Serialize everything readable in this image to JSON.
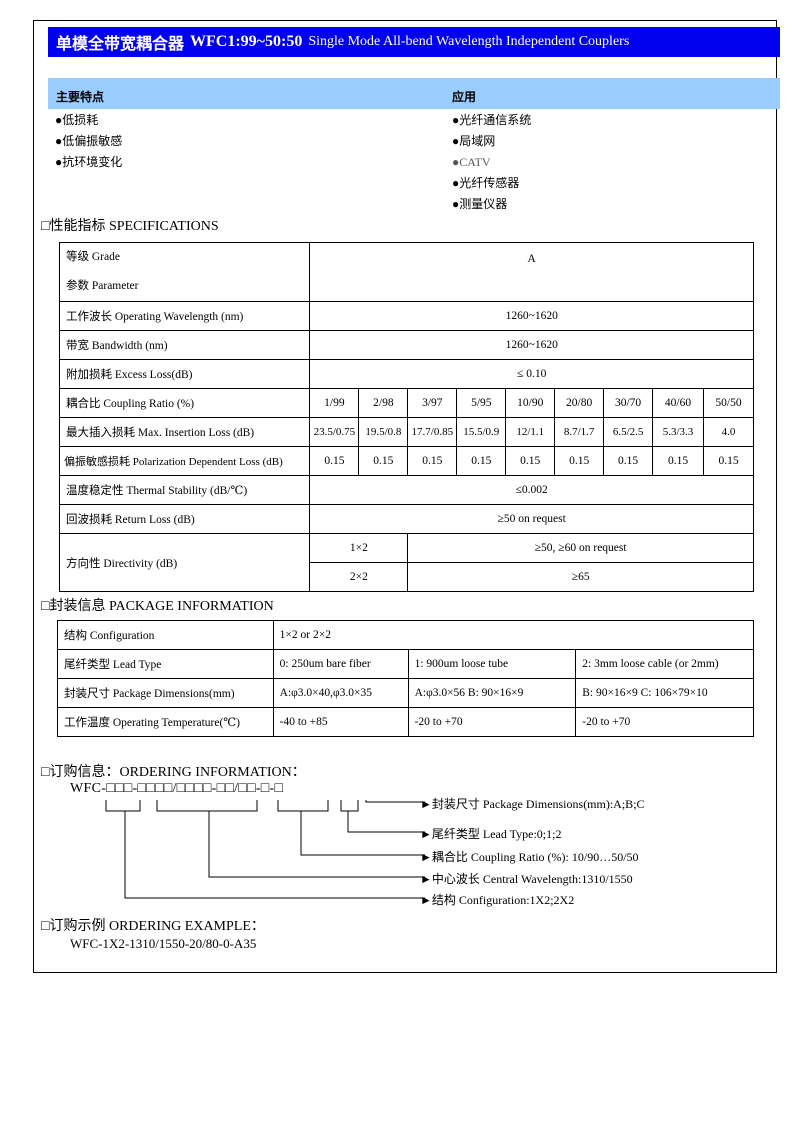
{
  "title": {
    "cn_name": "单模全带宽耦合器",
    "model": "WFC1:99~50:50",
    "en_name": "Single Mode All-bend Wavelength Independent Couplers"
  },
  "features": {
    "heading": "主要特点",
    "items": [
      "●低损耗",
      "●低偏振敏感",
      "●抗环境变化"
    ]
  },
  "applications": {
    "heading": "应用",
    "items": [
      "●光纤通信系统",
      "●局域网",
      "●CATV",
      "●光纤传感器",
      "●测量仪器"
    ]
  },
  "specifications": {
    "heading": "□性能指标  SPECIFICATIONS",
    "grade_label": "等级 Grade",
    "parameter_label": "参数 Parameter",
    "grade": "A",
    "rows": [
      {
        "label": "工作波长 Operating Wavelength (nm)",
        "value": "1260~1620"
      },
      {
        "label": "带宽 Bandwidth (nm)",
        "value": "1260~1620"
      },
      {
        "label": "附加损耗 Excess Loss(dB)",
        "value": "≤ 0.10"
      }
    ],
    "coupling_label": "耦合比 Coupling Ratio (%)",
    "coupling_ratios": [
      "1/99",
      "2/98",
      "3/97",
      "5/95",
      "10/90",
      "20/80",
      "30/70",
      "40/60",
      "50/50"
    ],
    "insertion_label": "最大插入损耗 Max. Insertion Loss (dB)",
    "insertion_loss": [
      "23.5/0.75",
      "19.5/0.8",
      "17.7/0.85",
      "15.5/0.9",
      "12/1.1",
      "8.7/1.7",
      "6.5/2.5",
      "5.3/3.3",
      "4.0"
    ],
    "pdl_label": "偏振敏感损耗 Polarization Dependent Loss (dB)",
    "pdl": [
      "0.15",
      "0.15",
      "0.15",
      "0.15",
      "0.15",
      "0.15",
      "0.15",
      "0.15",
      "0.15"
    ],
    "thermal_label": "温度稳定性 Thermal Stability (dB/℃)",
    "thermal": "≤0.002",
    "return_label": "回波损耗  Return Loss (dB)",
    "return": "≥50 on request",
    "directivity_label": "方向性 Directivity (dB)",
    "directivity": [
      {
        "config": "1×2",
        "value": "≥50,   ≥60 on request"
      },
      {
        "config": "2×2",
        "value": "≥65"
      }
    ]
  },
  "package": {
    "heading": "□封装信息  PACKAGE INFORMATION",
    "rows": [
      {
        "label": "结构  Configuration",
        "cells": [
          "1×2 or 2×2"
        ]
      },
      {
        "label": "尾纤类型  Lead Type",
        "cells": [
          "0: 250um bare fiber",
          "1: 900um loose tube",
          "2: 3mm loose cable (or 2mm)"
        ]
      },
      {
        "label": "封装尺寸 Package Dimensions(mm)",
        "cells": [
          "A:φ3.0×40,φ3.0×35",
          "A:φ3.0×56    B: 90×16×9",
          "B: 90×16×9    C: 106×79×10"
        ]
      },
      {
        "label": "工作温度 Operating Temperature(℃)",
        "cells": [
          "-40 to +85",
          "-20 to +70",
          "-20 to +70"
        ]
      }
    ]
  },
  "ordering": {
    "heading": "□订购信息：ORDERING INFORMATION：",
    "code": "WFC-□□□-□□□□/□□□□-□□/□□-□-□",
    "labels": [
      "►封装尺寸 Package Dimensions(mm):A;B;C",
      "►尾纤类型 Lead Type:0;1;2",
      "►耦合比 Coupling Ratio (%): 10/90…50/50",
      "►中心波长 Central Wavelength:1310/1550",
      "►结构 Configuration:1X2;2X2"
    ]
  },
  "example": {
    "heading": "□订购示例 ORDERING EXAMPLE：",
    "code": "WFC-1X2-1310/1550-20/80-0-A35"
  }
}
